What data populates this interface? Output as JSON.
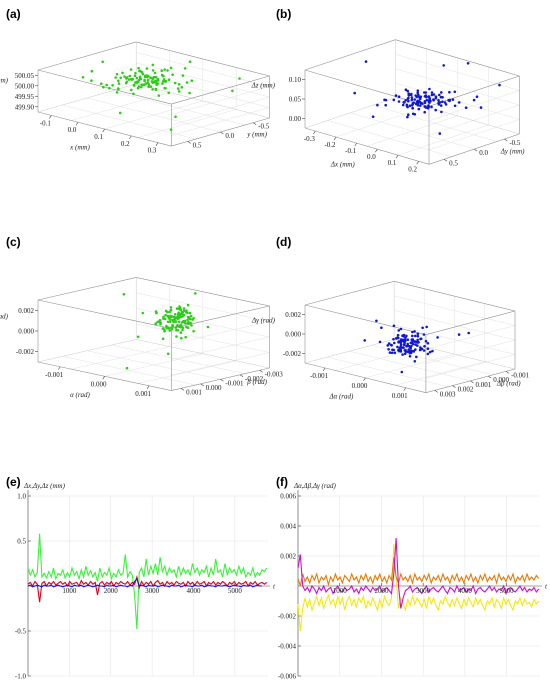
{
  "colors": {
    "green": "#2ecc1a",
    "blue": "#1018cc",
    "red": "#e00018",
    "magenta": "#cc10cc",
    "orange": "#e47a0a",
    "yellow": "#f0ea10",
    "series_green": "#3cf03c"
  },
  "chart_data": [
    {
      "id": "a",
      "panel_label": "(a)",
      "type": "scatter",
      "dims": 3,
      "xlabel": "x (mm)",
      "ylabel": "y (mm)",
      "zlabel": "z (mm)",
      "xticks": [
        "-0.1",
        "0.0",
        "0.1",
        "0.2",
        "0.3"
      ],
      "yticks": [
        "-0.5",
        "0.0",
        "0.5"
      ],
      "zticks": [
        "499.90",
        "499.95",
        "500.00",
        "500.05"
      ],
      "xlim": [
        -0.18,
        0.32
      ],
      "ylim": [
        -0.65,
        0.65
      ],
      "zlim": [
        499.87,
        500.08
      ],
      "grid": true,
      "color": "#2ecc1a",
      "cluster": {
        "n": 120,
        "center": [
          0.02,
          0.05,
          500.02
        ],
        "spread": [
          0.06,
          0.18,
          0.01
        ]
      },
      "outliers": [
        [
          -0.15,
          0.1,
          500.05
        ],
        [
          0.25,
          0.5,
          500.06
        ],
        [
          0.05,
          0.55,
          500.07
        ],
        [
          0.18,
          -0.1,
          499.91
        ],
        [
          0.22,
          -0.3,
          499.88
        ],
        [
          -0.05,
          -0.2,
          500.0
        ],
        [
          0.28,
          0.3,
          500.03
        ],
        [
          0.1,
          -0.55,
          499.95
        ]
      ]
    },
    {
      "id": "b",
      "panel_label": "(b)",
      "type": "scatter",
      "dims": 3,
      "xlabel": "Δx (mm)",
      "ylabel": "Δy (mm)",
      "zlabel": "Δz (mm)",
      "xticks": [
        "-0.3",
        "-0.2",
        "-0.1",
        "0.0",
        "0.1",
        "0.2"
      ],
      "yticks": [
        "-0.5",
        "0.0",
        "0.5"
      ],
      "zticks": [
        "0.00",
        "0.05",
        "0.10"
      ],
      "xlim": [
        -0.32,
        0.28
      ],
      "ylim": [
        -0.6,
        0.6
      ],
      "zlim": [
        -0.03,
        0.14
      ],
      "grid": true,
      "color": "#1018cc",
      "cluster": {
        "n": 120,
        "center": [
          0.02,
          0.05,
          0.06
        ],
        "spread": [
          0.06,
          0.16,
          0.01
        ]
      },
      "outliers": [
        [
          -0.28,
          0.1,
          0.12
        ],
        [
          0.22,
          0.5,
          0.11
        ],
        [
          0.05,
          0.55,
          0.14
        ],
        [
          0.15,
          -0.1,
          0.0
        ],
        [
          -0.1,
          -0.3,
          0.02
        ],
        [
          0.24,
          0.2,
          0.07
        ],
        [
          -0.05,
          0.5,
          0.12
        ]
      ]
    },
    {
      "id": "c",
      "panel_label": "(c)",
      "type": "scatter",
      "dims": 3,
      "xlabel": "α (rad)",
      "ylabel": "β (rad)",
      "zlabel": "γ (rad)",
      "xticks": [
        "-0.001",
        "0.000",
        "0.001"
      ],
      "yticks": [
        "-0.003",
        "-0.002",
        "-0.001",
        "0.000",
        "0.001"
      ],
      "zticks": [
        "-0.002",
        "0.000",
        "0.002"
      ],
      "xlim": [
        -0.0016,
        0.0016
      ],
      "ylim": [
        -0.0036,
        0.0016
      ],
      "zlim": [
        -0.003,
        0.003
      ],
      "grid": true,
      "color": "#2ecc1a",
      "cluster": {
        "n": 120,
        "center": [
          0.0002,
          -0.0002,
          0.0012
        ],
        "spread": [
          0.0002,
          0.0004,
          0.0006
        ]
      },
      "outliers": [
        [
          -0.0014,
          0.0005,
          0.002
        ],
        [
          0.0013,
          -0.001,
          0.0018
        ],
        [
          0.0004,
          -0.0033,
          -0.002
        ],
        [
          -0.0006,
          -0.0005,
          -0.001
        ],
        [
          0.0,
          0.0012,
          0.003
        ],
        [
          0.0008,
          -0.002,
          -0.0008
        ]
      ]
    },
    {
      "id": "d",
      "panel_label": "(d)",
      "type": "scatter",
      "dims": 3,
      "xlabel": "Δα (rad)",
      "ylabel": "Δβ (rad)",
      "zlabel": "Δγ (rad)",
      "xticks": [
        "-0.001",
        "0.000",
        "0.001"
      ],
      "yticks": [
        "-0.001",
        "0.000",
        "0.001",
        "0.002",
        "0.003"
      ],
      "zticks": [
        "-0.002",
        "0.000",
        "0.002"
      ],
      "xlim": [
        -0.0016,
        0.0016
      ],
      "ylim": [
        -0.0016,
        0.0036
      ],
      "zlim": [
        -0.003,
        0.003
      ],
      "grid": true,
      "color": "#1018cc",
      "cluster": {
        "n": 120,
        "center": [
          0.0001,
          0.0006,
          -0.0005
        ],
        "spread": [
          0.0002,
          0.0004,
          0.0006
        ]
      },
      "outliers": [
        [
          -0.0012,
          0.001,
          -0.0015
        ],
        [
          0.0013,
          0.001,
          0.0015
        ],
        [
          0.0002,
          -0.0014,
          0.003
        ],
        [
          -0.0008,
          0.0035,
          -0.001
        ],
        [
          0.0011,
          0.002,
          0.001
        ],
        [
          -0.0002,
          0.0005,
          0.0012
        ],
        [
          0.0006,
          -0.0008,
          -0.0022
        ]
      ]
    },
    {
      "id": "e",
      "panel_label": "(e)",
      "type": "line",
      "ylabel": "Δx,Δy,Δz (mm)",
      "xlabel": "t",
      "x_start": 0,
      "x_step": 56,
      "xlim": [
        0,
        5800
      ],
      "ylim": [
        -1.0,
        1.0
      ],
      "xticks": [
        1000,
        2000,
        3000,
        4000,
        5000
      ],
      "yticks": [
        -1.0,
        -0.5,
        0.5,
        1.0
      ],
      "ytick_labels": [
        "-1.0",
        "-0.5",
        "0.5",
        "1.0"
      ],
      "grid": true,
      "series": [
        {
          "color": "#3cf03c",
          "values": [
            0.2,
            0.12,
            0.18,
            0.1,
            0.15,
            0.58,
            0.1,
            0.14,
            0.09,
            0.16,
            0.1,
            0.2,
            0.08,
            0.14,
            0.12,
            0.18,
            0.09,
            0.15,
            0.1,
            0.2,
            0.12,
            0.16,
            0.08,
            0.18,
            0.1,
            0.22,
            0.12,
            0.17,
            0.1,
            0.15,
            0.05,
            0.2,
            0.1,
            0.15,
            0.12,
            0.2,
            0.08,
            0.14,
            0.1,
            0.18,
            0.12,
            0.14,
            0.35,
            0.1,
            0.16,
            0.12,
            -0.1,
            -0.48,
            0.15,
            0.2,
            0.1,
            0.3,
            0.12,
            0.22,
            0.14,
            0.25,
            0.12,
            0.32,
            0.16,
            0.22,
            0.12,
            0.2,
            0.15,
            0.18,
            0.1,
            0.22,
            0.12,
            0.2,
            0.14,
            0.18,
            0.12,
            0.25,
            0.15,
            0.2,
            0.12,
            0.18,
            0.15,
            0.22,
            0.1,
            0.2,
            0.12,
            0.3,
            0.15,
            0.18,
            0.1,
            0.25,
            0.12,
            0.2,
            0.15,
            0.18,
            0.12,
            0.22,
            0.14,
            0.2,
            0.1,
            0.15,
            0.12,
            0.2,
            0.1,
            0.15,
            0.12,
            0.18,
            0.16,
            0.2
          ]
        },
        {
          "color": "#e00018",
          "values": [
            0.02,
            0.04,
            0.0,
            0.05,
            0.02,
            -0.18,
            0.03,
            0.05,
            0.0,
            0.04,
            0.02,
            0.05,
            0.01,
            0.03,
            0.05,
            0.02,
            0.04,
            0.0,
            0.05,
            0.02,
            0.03,
            0.04,
            0.0,
            0.06,
            0.02,
            0.04,
            0.01,
            0.05,
            0.02,
            0.04,
            -0.1,
            0.03,
            0.05,
            0.01,
            0.04,
            0.02,
            0.05,
            0.0,
            0.04,
            0.02,
            0.05,
            0.03,
            0.02,
            0.05,
            0.01,
            0.04,
            0.02,
            0.1,
            -0.02,
            0.05,
            0.01,
            0.04,
            0.02,
            0.05,
            0.0,
            0.04,
            0.06,
            0.02,
            0.04,
            0.0,
            0.05,
            0.02,
            0.04,
            0.01,
            0.05,
            0.03,
            0.02,
            0.04,
            0.0,
            0.05,
            0.02,
            0.04,
            0.01,
            0.05,
            0.02,
            0.03,
            0.05,
            0.0,
            0.04,
            0.02,
            0.05,
            0.01,
            0.04,
            0.02,
            0.05,
            0.03,
            0.0,
            0.04,
            0.02,
            0.05,
            0.01,
            0.04,
            0.02,
            0.03,
            0.05,
            0.0,
            0.04,
            0.02,
            0.05,
            0.01,
            0.03,
            0.04,
            0.02,
            0.04
          ]
        },
        {
          "color": "#1018cc",
          "values": [
            0.0,
            0.01,
            -0.01,
            0.0,
            0.01,
            0.0,
            -0.01,
            0.01,
            0.0,
            0.0,
            0.01,
            -0.01,
            0.0,
            0.01,
            0.0,
            -0.01,
            0.0,
            0.01,
            0.0,
            -0.01,
            0.01,
            0.0,
            0.0,
            0.01,
            -0.01,
            0.0,
            0.01,
            0.0,
            -0.01,
            0.0,
            0.01,
            0.0,
            0.0,
            -0.01,
            0.01,
            0.0,
            0.0,
            0.01,
            -0.01,
            0.0,
            0.01,
            0.0,
            0.0,
            -0.01,
            0.01,
            0.0,
            0.05,
            0.08,
            0.0,
            0.01,
            0.0,
            -0.01,
            0.01,
            0.0,
            0.0,
            0.01,
            -0.01,
            0.0,
            0.01,
            0.0,
            0.0,
            -0.01,
            0.01,
            0.0,
            0.0,
            0.01,
            -0.01,
            0.0,
            0.01,
            0.0,
            0.0,
            -0.01,
            0.01,
            0.0,
            0.0,
            0.01,
            -0.01,
            0.0,
            0.01,
            0.0,
            0.0,
            -0.01,
            0.01,
            0.0,
            0.0,
            0.01,
            0.0,
            -0.01,
            0.0,
            0.01,
            0.0,
            0.0,
            -0.01,
            0.01,
            0.0,
            0.0,
            0.01,
            -0.01,
            0.0,
            0.01,
            0.0,
            0.0
          ]
        }
      ]
    },
    {
      "id": "f",
      "panel_label": "(f)",
      "type": "line",
      "ylabel": "Δα,Δβ,Δγ (rad)",
      "xlabel": "t",
      "x_start": 0,
      "x_step": 56,
      "xlim": [
        0,
        5800
      ],
      "ylim": [
        -0.006,
        0.006
      ],
      "xticks": [
        1000,
        2000,
        3000,
        4000,
        5000
      ],
      "yticks": [
        -0.006,
        -0.004,
        -0.002,
        0.002,
        0.004,
        0.006
      ],
      "ytick_labels": [
        "-0.006",
        "-0.004",
        "-0.002",
        "0.002",
        "0.004",
        "0.006"
      ],
      "grid": true,
      "series": [
        {
          "color": "#f0ea10",
          "values": [
            -0.0012,
            -0.003,
            -0.0015,
            -0.0008,
            -0.0014,
            -0.0009,
            -0.0016,
            -0.0011,
            -0.0007,
            -0.0013,
            -0.0008,
            -0.0015,
            -0.001,
            -0.0006,
            -0.0012,
            -0.0009,
            -0.0014,
            -0.0007,
            -0.0012,
            -0.0008,
            -0.0016,
            -0.001,
            -0.0007,
            -0.0013,
            -0.0009,
            -0.0014,
            -0.0008,
            -0.0011,
            -0.0007,
            -0.0015,
            -0.001,
            -0.0013,
            -0.0008,
            -0.0012,
            -0.0016,
            -0.0009,
            -0.0014,
            -0.0007,
            -0.0011,
            -0.0013,
            -0.0008,
            0.0028,
            0.0005,
            -0.0015,
            -0.0008,
            -0.0012,
            -0.0016,
            -0.0009,
            -0.0013,
            -0.0007,
            -0.0012,
            -0.0008,
            -0.0011,
            -0.0014,
            -0.0009,
            -0.0015,
            -0.0007,
            -0.0012,
            -0.0008,
            -0.0013,
            -0.0016,
            -0.001,
            -0.0012,
            -0.0007,
            -0.0011,
            -0.0014,
            -0.0009,
            -0.0013,
            -0.0008,
            -0.0012,
            -0.0015,
            -0.0009,
            -0.0013,
            -0.0008,
            -0.0011,
            -0.0014,
            -0.0008,
            -0.0012,
            -0.0009,
            -0.0013,
            -0.0016,
            -0.001,
            -0.0012,
            -0.0008,
            -0.0014,
            -0.0009,
            -0.0011,
            -0.0015,
            -0.0008,
            -0.0012,
            -0.0009,
            -0.0013,
            -0.0016,
            -0.001,
            -0.0012,
            -0.0008,
            -0.0013,
            -0.0009,
            -0.0012,
            -0.0011,
            -0.0014,
            -0.0009,
            -0.0012,
            -0.001
          ]
        },
        {
          "color": "#e47a0a",
          "values": [
            0.0005,
            0.0,
            0.0008,
            0.0003,
            0.0006,
            0.0002,
            0.0007,
            0.0004,
            0.0008,
            0.0002,
            0.0006,
            0.0004,
            0.0007,
            0.0001,
            0.0006,
            0.0003,
            0.0008,
            0.0004,
            0.0006,
            0.0002,
            0.0007,
            0.0005,
            0.0003,
            0.0008,
            0.0004,
            0.0006,
            0.0002,
            0.0007,
            0.0004,
            0.0008,
            0.0003,
            0.0006,
            0.0002,
            0.0007,
            0.0004,
            0.0008,
            0.0003,
            0.0006,
            0.0002,
            0.0007,
            0.0004,
            0.0019,
            0.0006,
            0.0002,
            0.0008,
            0.0004,
            0.0006,
            0.0003,
            0.0007,
            0.0002,
            0.0008,
            0.0004,
            0.0006,
            0.0003,
            0.0007,
            0.0004,
            0.0008,
            0.0002,
            0.0006,
            0.0004,
            0.0007,
            0.0003,
            0.0008,
            0.0004,
            0.0006,
            0.0002,
            0.0007,
            0.0004,
            0.0008,
            0.0003,
            0.0006,
            0.0002,
            0.0007,
            0.0004,
            0.0008,
            0.0003,
            0.0006,
            0.0002,
            0.0007,
            0.0004,
            0.0008,
            0.0003,
            0.0006,
            0.0004,
            0.0007,
            0.0002,
            0.0008,
            0.0004,
            0.0006,
            0.0003,
            0.0007,
            0.0004,
            0.0008,
            0.0002,
            0.0006,
            0.0004,
            0.0007,
            0.0003,
            0.0008,
            0.0004,
            0.0006,
            0.0004,
            0.0007,
            0.0005
          ]
        },
        {
          "color": "#cc10cc",
          "values": [
            0.0012,
            0.0021,
            0.0,
            -0.0003,
            -0.0001,
            -0.0004,
            0.0,
            -0.0002,
            -0.0005,
            -0.0001,
            -0.0003,
            0.0,
            -0.0004,
            -0.0002,
            -0.0001,
            -0.0005,
            -0.0002,
            0.0,
            -0.0003,
            -0.0004,
            -0.0001,
            -0.0003,
            -0.0002,
            0.0,
            -0.0004,
            -0.0002,
            -0.0005,
            -0.0001,
            -0.0003,
            0.0,
            -0.0002,
            -0.0004,
            -0.0001,
            -0.0003,
            -0.0002,
            0.0,
            -0.0004,
            -0.0002,
            -0.0001,
            -0.0003,
            -0.0005,
            0.0008,
            0.0032,
            0.0,
            -0.0015,
            -0.0008,
            -0.0003,
            -0.0002,
            0.0,
            -0.0004,
            -0.0002,
            -0.0001,
            -0.0003,
            -0.0005,
            -0.0002,
            0.0,
            -0.0004,
            -0.0002,
            -0.0001,
            -0.0003,
            -0.0004,
            -0.0002,
            0.0,
            -0.0003,
            -0.0005,
            -0.0001,
            -0.0002,
            -0.0004,
            0.0,
            -0.0003,
            -0.0002,
            -0.0001,
            -0.0004,
            -0.0002,
            -0.0003,
            0.0,
            -0.0005,
            -0.0002,
            -0.0001,
            -0.0003,
            -0.0004,
            -0.0002,
            0.0,
            -0.0003,
            -0.0001,
            -0.0004,
            -0.0002,
            -0.0003,
            0.0,
            -0.0005,
            -0.0002,
            -0.0001,
            -0.0003,
            -0.0004,
            -0.0002,
            0.0,
            -0.0003,
            -0.0001,
            -0.0004,
            -0.0002,
            -0.0003,
            -0.0001,
            -0.0004,
            -0.0002
          ]
        }
      ]
    }
  ]
}
